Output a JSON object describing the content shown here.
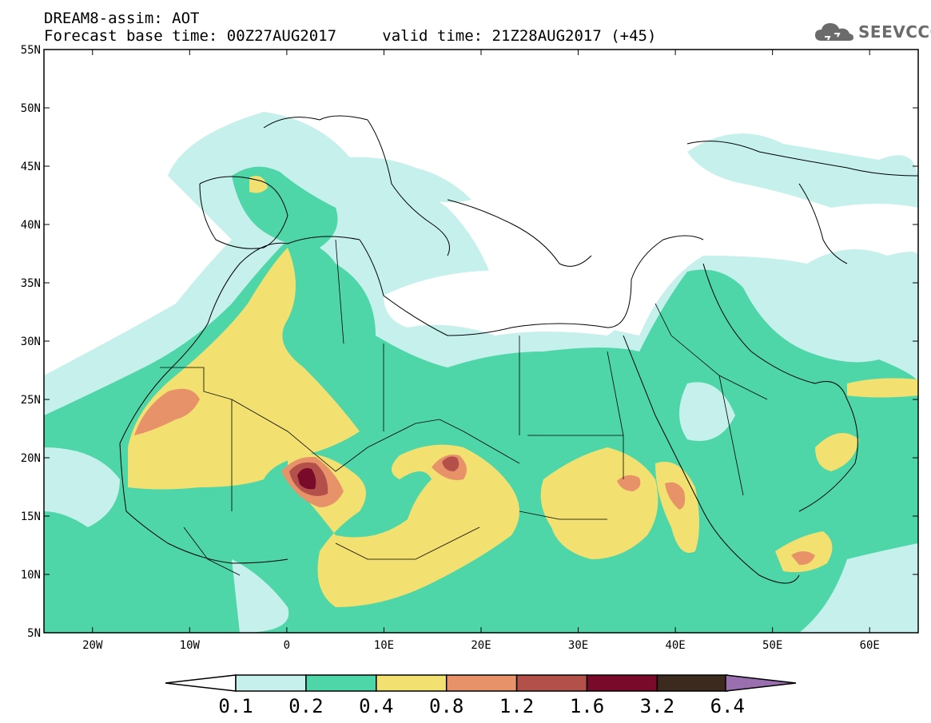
{
  "header": {
    "title": "DREAM8-assim: AOT",
    "base_time_label": "Forecast base time: 00Z27AUG2017",
    "valid_time_label": "valid time: 21Z28AUG2017 (+45)",
    "logo_text": "SEEVCCC"
  },
  "axes": {
    "lat_labels": [
      "55N",
      "50N",
      "45N",
      "40N",
      "35N",
      "30N",
      "25N",
      "20N",
      "15N",
      "10N",
      "5N"
    ],
    "lon_labels": [
      "20W",
      "10W",
      "0",
      "10E",
      "20E",
      "30E",
      "40E",
      "50E",
      "60E"
    ]
  },
  "legend": {
    "boundaries": [
      "0.1",
      "0.2",
      "0.4",
      "0.8",
      "1.2",
      "1.6",
      "3.2",
      "6.4"
    ],
    "colors": [
      "#c6f0ec",
      "#4ed6a8",
      "#f2e170",
      "#e8926a",
      "#b4504a",
      "#7a0a2a",
      "#3c2a1e",
      "#9a6fb0"
    ]
  },
  "map": {
    "extent": {
      "lon_min": -25,
      "lon_max": 65,
      "lat_min": 5,
      "lat_max": 55
    },
    "colors": {
      "low": "#c6f0ec",
      "mid": "#4ed6a8",
      "high": "#f2e170",
      "vhigh": "#e8926a",
      "extreme": "#b4504a",
      "peak": "#7a0a2a"
    }
  }
}
